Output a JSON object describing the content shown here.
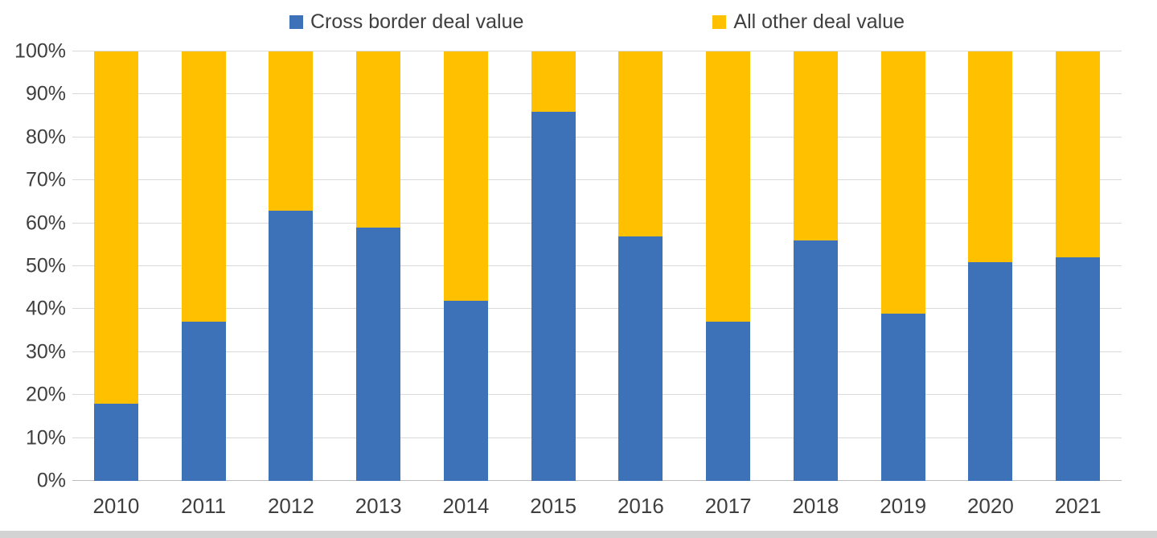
{
  "chart_data": {
    "type": "bar",
    "stacked": true,
    "percent_stacked": true,
    "title": "",
    "xlabel": "",
    "ylabel": "",
    "categories": [
      "2010",
      "2011",
      "2012",
      "2013",
      "2014",
      "2015",
      "2016",
      "2017",
      "2018",
      "2019",
      "2020",
      "2021"
    ],
    "series": [
      {
        "key": "cross-border",
        "name": "Cross border deal value",
        "color": "#3D71B8",
        "values": [
          18,
          37,
          63,
          59,
          42,
          86,
          57,
          37,
          56,
          39,
          51,
          52
        ]
      },
      {
        "key": "all-other",
        "name": "All other deal value",
        "color": "#FFC000",
        "values": [
          82,
          63,
          37,
          41,
          58,
          14,
          43,
          63,
          44,
          61,
          49,
          48
        ]
      }
    ],
    "ylim": [
      0,
      100
    ],
    "yticks": [
      "0%",
      "10%",
      "20%",
      "30%",
      "40%",
      "50%",
      "60%",
      "70%",
      "80%",
      "90%",
      "100%"
    ],
    "grid": true,
    "legend_position": "top",
    "gridline_color": "#d9d9d9",
    "axis_text_color": "#3f3f3f"
  }
}
